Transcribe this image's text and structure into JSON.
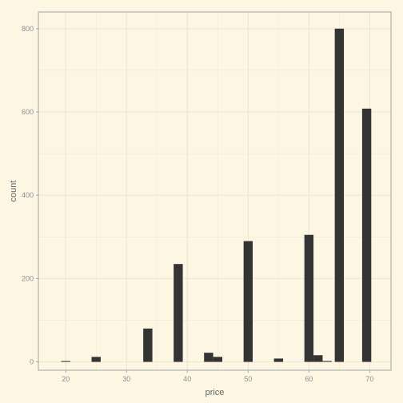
{
  "chart_data": {
    "type": "bar",
    "title": "",
    "xlabel": "price",
    "ylabel": "count",
    "xlim": [
      15.5,
      73.5
    ],
    "ylim": [
      -20,
      840
    ],
    "bin_width": 1.5,
    "x_ticks": [
      20,
      30,
      40,
      50,
      60,
      70
    ],
    "y_ticks": [
      0,
      200,
      400,
      600,
      800
    ],
    "bins": [
      {
        "x": 20,
        "count": 2
      },
      {
        "x": 25,
        "count": 12
      },
      {
        "x": 33.5,
        "count": 80
      },
      {
        "x": 38.5,
        "count": 235
      },
      {
        "x": 43.5,
        "count": 22
      },
      {
        "x": 45,
        "count": 12
      },
      {
        "x": 50,
        "count": 290
      },
      {
        "x": 55,
        "count": 8
      },
      {
        "x": 60,
        "count": 305
      },
      {
        "x": 61.5,
        "count": 16
      },
      {
        "x": 63,
        "count": 2
      },
      {
        "x": 65,
        "count": 800
      },
      {
        "x": 69.5,
        "count": 608
      }
    ],
    "grid": true,
    "legend": "none",
    "colors": {
      "background": "#fdf6e3",
      "bar": "#343434",
      "grid": "#ede5d2",
      "border": "#9da5a9"
    }
  }
}
